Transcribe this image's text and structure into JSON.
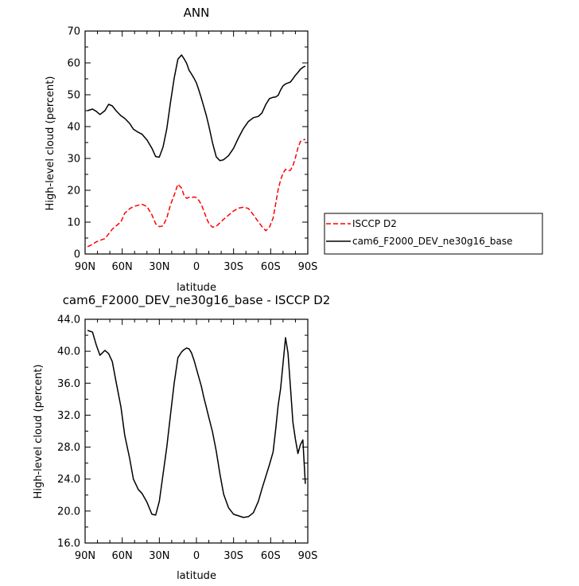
{
  "chart_data": [
    {
      "type": "line",
      "title": "ANN",
      "xlabel": "latitude",
      "ylabel": "High-level cloud (percent)",
      "xlim": [
        90,
        -90
      ],
      "ylim": [
        0,
        70
      ],
      "x_ticks": [
        90,
        60,
        30,
        0,
        -30,
        -60,
        -90
      ],
      "x_tick_labels": [
        "90N",
        "60N",
        "30N",
        "0",
        "30S",
        "60S",
        "90S"
      ],
      "y_ticks": [
        0,
        10,
        20,
        30,
        40,
        50,
        60,
        70
      ],
      "y_tick_labels": [
        "0",
        "10",
        "20",
        "30",
        "40",
        "50",
        "60",
        "70"
      ],
      "legend_position": "right",
      "series": [
        {
          "name": "ISCCP D2",
          "color": "#ff0000",
          "dash": "dashed",
          "x": [
            88,
            84,
            81,
            78,
            74,
            71,
            68,
            65,
            61,
            58,
            54,
            51,
            47,
            44,
            40,
            36,
            33,
            30,
            27,
            24,
            21,
            18,
            15,
            12,
            10,
            8,
            6,
            4,
            2,
            0,
            -2,
            -4,
            -6,
            -8,
            -10,
            -13,
            -16,
            -19,
            -22,
            -26,
            -30,
            -34,
            -38,
            -42,
            -46,
            -50,
            -53,
            -56,
            -59,
            -62,
            -64,
            -66,
            -68,
            -70,
            -72,
            -74,
            -76,
            -78,
            -80,
            -82,
            -84,
            -86,
            -88
          ],
          "y": [
            2.3,
            3,
            3.8,
            4.3,
            4.8,
            6.3,
            7.8,
            8.8,
            10.1,
            12.8,
            14.2,
            14.9,
            15.3,
            15.6,
            14.9,
            12.3,
            9.5,
            8.6,
            8.8,
            11.3,
            15.4,
            18.5,
            21.9,
            20.7,
            18.4,
            17.5,
            17.8,
            17.7,
            17.9,
            17.7,
            16.8,
            15.5,
            13.5,
            11.4,
            9.6,
            8.4,
            8.7,
            9.8,
            10.9,
            12.2,
            13.5,
            14.4,
            14.7,
            14.3,
            12.3,
            10.1,
            8.6,
            7.3,
            8.4,
            11.3,
            15.7,
            20.2,
            23.2,
            25.4,
            26.6,
            26.1,
            26.3,
            27.7,
            30.2,
            33.3,
            35.3,
            35.8,
            36
          ]
        },
        {
          "name": "cam6_F2000_DEV_ne30g16_base",
          "color": "#000000",
          "dash": "solid",
          "x": [
            88,
            84,
            81,
            78,
            74,
            71,
            68,
            65,
            61,
            58,
            54,
            51,
            47,
            44,
            40,
            36,
            33,
            30,
            27,
            24,
            21,
            18,
            15,
            12,
            10,
            8,
            6,
            4,
            2,
            0,
            -2,
            -4,
            -6,
            -8,
            -10,
            -13,
            -16,
            -19,
            -22,
            -26,
            -30,
            -34,
            -38,
            -42,
            -46,
            -50,
            -53,
            -56,
            -59,
            -62,
            -64,
            -66,
            -68,
            -70,
            -72,
            -74,
            -76,
            -78,
            -80,
            -82,
            -84,
            -86,
            -88
          ],
          "y": [
            45,
            45.5,
            44.8,
            43.8,
            45,
            47,
            46.5,
            45,
            43.4,
            42.6,
            41,
            39.2,
            38.2,
            37.6,
            35.8,
            33.2,
            30.6,
            30.4,
            33.6,
            39.3,
            47.5,
            55.2,
            61.2,
            62.5,
            61.3,
            59.9,
            57.7,
            56.5,
            55.2,
            53.7,
            51.4,
            48.9,
            46.2,
            43.5,
            40.2,
            34.9,
            30.5,
            29.3,
            29.6,
            30.9,
            33.2,
            36.5,
            39.4,
            41.6,
            42.8,
            43.2,
            44.3,
            46.9,
            48.8,
            49.2,
            49.3,
            49.8,
            51.5,
            52.8,
            53.4,
            53.7,
            54,
            55,
            56.1,
            57,
            58,
            58.6,
            59
          ]
        }
      ]
    },
    {
      "type": "line",
      "title": "cam6_F2000_DEV_ne30g16_base - ISCCP D2",
      "xlabel": "latitude",
      "ylabel": "High-level cloud (percent)",
      "xlim": [
        90,
        -90
      ],
      "ylim": [
        16,
        44
      ],
      "x_ticks": [
        90,
        60,
        30,
        0,
        -30,
        -60,
        -90
      ],
      "x_tick_labels": [
        "90N",
        "60N",
        "30N",
        "0",
        "30S",
        "60S",
        "90S"
      ],
      "y_ticks": [
        16,
        20,
        24,
        28,
        32,
        36,
        40,
        44
      ],
      "y_tick_labels": [
        "16.0",
        "20.0",
        "24.0",
        "28.0",
        "32.0",
        "36.0",
        "40.0",
        "44.0"
      ],
      "series": [
        {
          "color": "#000000",
          "dash": "solid",
          "x": [
            88,
            84,
            81,
            78,
            74,
            71,
            68,
            65,
            61,
            58,
            54,
            51,
            47,
            44,
            40,
            36,
            33,
            30,
            27,
            24,
            21,
            18,
            15,
            12,
            10,
            8,
            6,
            4,
            2,
            0,
            -2,
            -4,
            -6,
            -8,
            -10,
            -13,
            -16,
            -19,
            -22,
            -26,
            -30,
            -34,
            -38,
            -42,
            -46,
            -50,
            -53,
            -56,
            -59,
            -62,
            -64,
            -66,
            -68,
            -70,
            -72,
            -74,
            -76,
            -78,
            -80,
            -82,
            -84,
            -86,
            -88
          ],
          "y": [
            42.6,
            42.4,
            40.8,
            39.5,
            40.1,
            39.7,
            38.7,
            36.2,
            33,
            29.5,
            26.6,
            24,
            22.7,
            22.2,
            21.1,
            19.6,
            19.5,
            21.2,
            24.6,
            28,
            32,
            36,
            39.2,
            39.9,
            40.2,
            40.4,
            40.3,
            39.8,
            38.9,
            37.8,
            36.7,
            35.6,
            34.2,
            33,
            31.7,
            29.9,
            27.5,
            24.6,
            22.1,
            20.4,
            19.6,
            19.4,
            19.2,
            19.3,
            19.8,
            21.2,
            22.8,
            24.3,
            25.8,
            27.4,
            30.2,
            33.2,
            35.3,
            38.5,
            41.7,
            39.8,
            35.5,
            31.1,
            29,
            27.2,
            28.3,
            28.9,
            23.4
          ]
        }
      ]
    }
  ]
}
